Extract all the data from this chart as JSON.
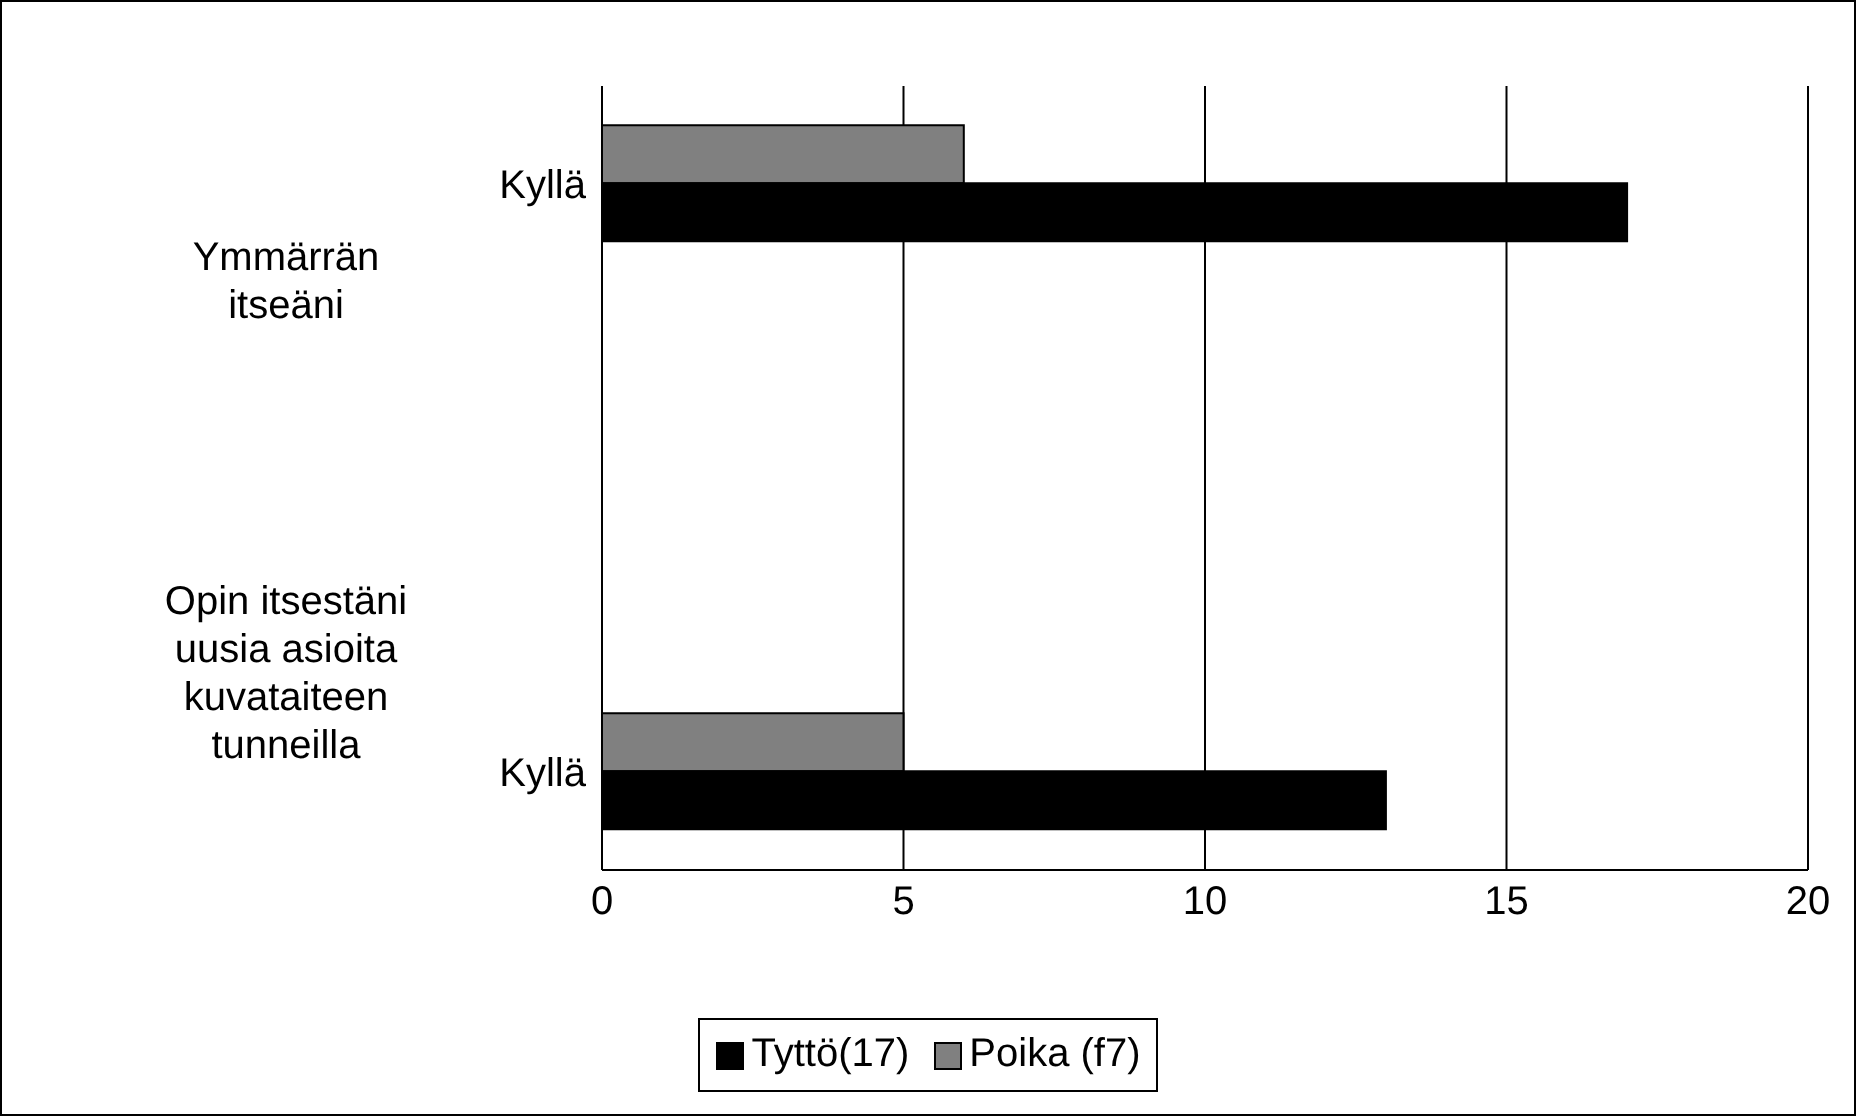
{
  "chart_data": {
    "type": "bar",
    "orientation": "horizontal",
    "categories": [
      "Kyllä",
      null,
      null,
      "Kyllä"
    ],
    "annotations": [
      "Ymmärrän itseäni",
      "Opin itsestäni uusia asioita kuvataiteen tunneilla"
    ],
    "series": [
      {
        "name": "Tyttö(17)",
        "color": "#000000",
        "values": [
          17,
          null,
          null,
          13
        ]
      },
      {
        "name": "Poika (f7)",
        "color": "#808080",
        "values": [
          6,
          null,
          null,
          5
        ]
      }
    ],
    "xlim": [
      0,
      20
    ],
    "xticks": [
      0,
      5,
      10,
      15,
      20
    ],
    "grid": "x",
    "legend": "bottom"
  }
}
